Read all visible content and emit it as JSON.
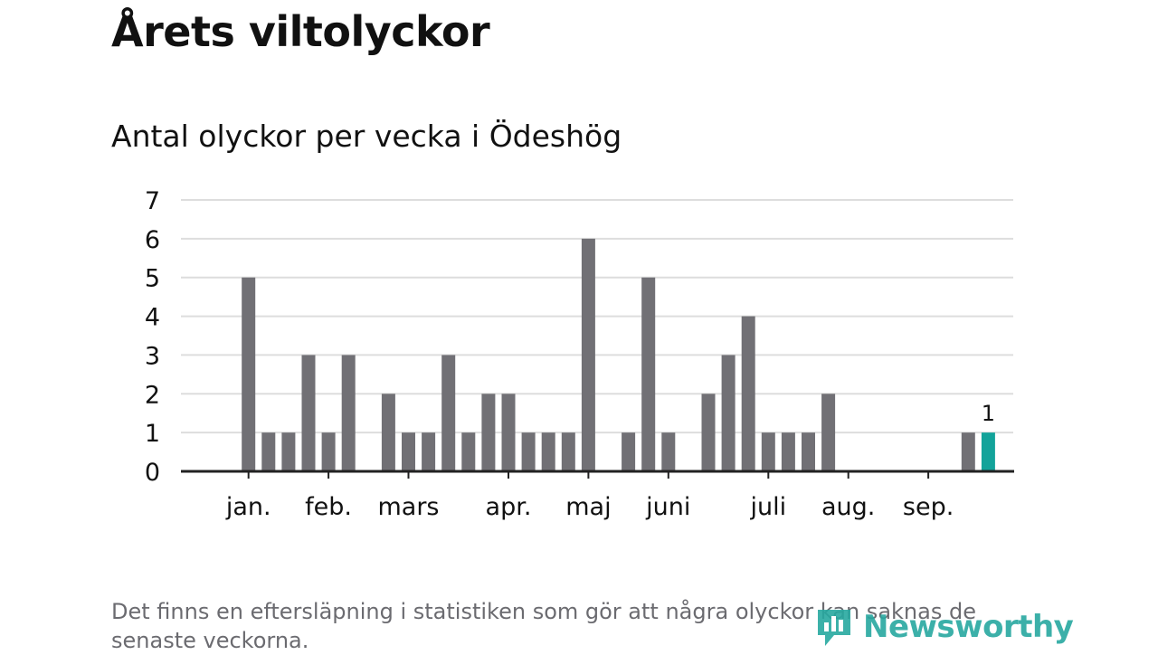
{
  "page": {
    "title": "Årets viltolyckor",
    "subtitle": "Antal olyckor per vecka i Ödeshög",
    "footnote": "Det finns en eftersläpning i statistiken som gör att några olyckor kan saknas de senaste veckorna.",
    "logo_text": "Newsworthy"
  },
  "colors": {
    "bar": "#717075",
    "highlight": "#13a39a",
    "grid": "#dddddd",
    "axis": "#222222",
    "text": "#111111",
    "logo": "#27a8a0"
  },
  "chart_data": {
    "type": "bar",
    "title": "Antal olyckor per vecka i Ödeshög",
    "xlabel": "",
    "ylabel": "",
    "ylim": [
      0,
      7
    ],
    "yticks": [
      0,
      1,
      2,
      3,
      4,
      5,
      6,
      7
    ],
    "grid": true,
    "x": [
      1,
      2,
      3,
      4,
      5,
      6,
      7,
      8,
      9,
      10,
      11,
      12,
      13,
      14,
      15,
      16,
      17,
      18,
      19,
      20,
      21,
      22,
      23,
      24,
      25,
      26,
      27,
      28,
      29,
      30,
      31,
      32,
      33,
      34,
      35,
      36,
      37,
      38,
      39,
      40,
      41,
      42
    ],
    "values": [
      0,
      0,
      5,
      1,
      1,
      3,
      1,
      3,
      0,
      2,
      1,
      1,
      3,
      1,
      2,
      2,
      1,
      1,
      1,
      6,
      0,
      1,
      5,
      1,
      0,
      2,
      3,
      4,
      1,
      1,
      1,
      2,
      0,
      0,
      0,
      0,
      0,
      0,
      1,
      1,
      0,
      0
    ],
    "highlight_week": 40,
    "highlight_label": "1",
    "month_labels": [
      {
        "label": "jan.",
        "week": 3
      },
      {
        "label": "feb.",
        "week": 7
      },
      {
        "label": "mars",
        "week": 11
      },
      {
        "label": "apr.",
        "week": 16
      },
      {
        "label": "maj",
        "week": 20
      },
      {
        "label": "juni",
        "week": 24
      },
      {
        "label": "juli",
        "week": 29
      },
      {
        "label": "aug.",
        "week": 33
      },
      {
        "label": "sep.",
        "week": 37
      }
    ]
  }
}
